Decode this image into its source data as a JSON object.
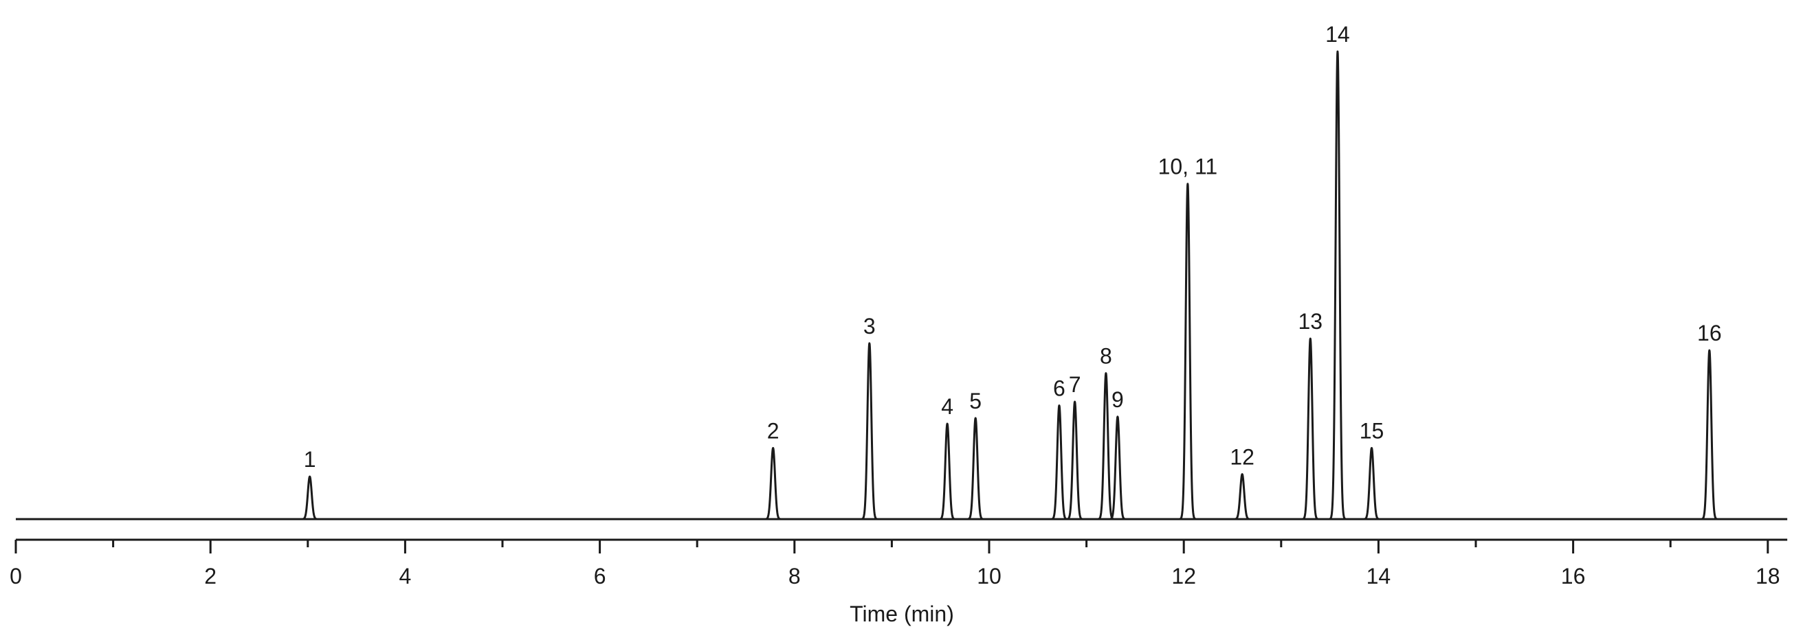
{
  "chart_data": {
    "type": "chromatogram",
    "x_label": "Time (min)",
    "x": [
      3.02,
      7.78,
      8.77,
      9.57,
      9.86,
      10.72,
      10.88,
      11.2,
      11.32,
      12.04,
      12.6,
      13.3,
      13.58,
      13.93,
      17.4
    ],
    "values": [
      9.1,
      15.2,
      37.6,
      20.4,
      21.6,
      24.3,
      25.1,
      31.2,
      21.9,
      71.7,
      9.6,
      38.6,
      100,
      15.2,
      36.1
    ],
    "peak_labels": [
      "1",
      "2",
      "3",
      "4",
      "5",
      "6",
      "7",
      "8",
      "9",
      "10, 11",
      "12",
      "13",
      "14",
      "15",
      "16"
    ],
    "color": "#1a1a1a",
    "xlim": [
      0,
      18.2
    ],
    "xticks": [
      0,
      2,
      4,
      6,
      8,
      10,
      12,
      14,
      16,
      18
    ],
    "xminor_ticks": [
      1,
      3,
      5,
      7,
      9,
      11,
      13,
      15,
      17
    ],
    "ylim": [
      0,
      100
    ]
  }
}
